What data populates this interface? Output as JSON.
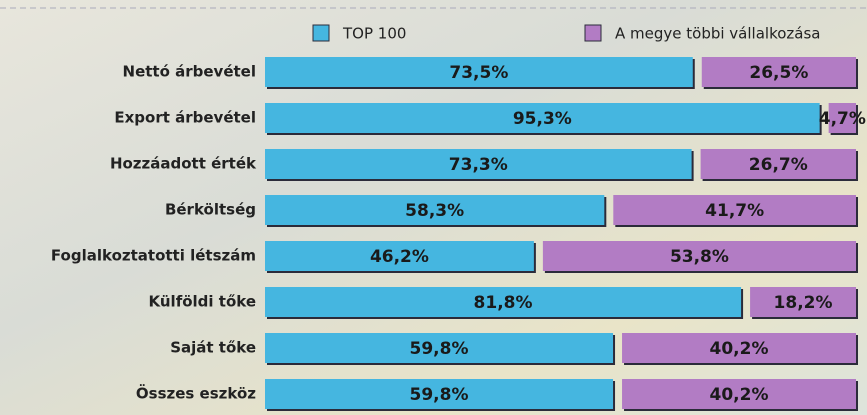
{
  "chart_data": {
    "type": "bar",
    "stacked": true,
    "categories": [
      "Nettó árbevétel",
      "Export árbevétel",
      "Hozzáadott érték",
      "Bérköltség",
      "Foglalkoztatotti létszám",
      "Külföldi tőke",
      "Saját tőke",
      "Összes eszköz"
    ],
    "series": [
      {
        "name": "TOP 100",
        "color": "#45b6e0",
        "values": [
          73.5,
          95.3,
          73.3,
          58.3,
          46.2,
          81.8,
          59.8,
          59.8
        ],
        "value_labels": [
          "73,5%",
          "95,3%",
          "73,3%",
          "58,3%",
          "46,2%",
          "81,8%",
          "59,8%",
          "59,8%"
        ]
      },
      {
        "name": "A megye többi vállalkozása",
        "color": "#b27cc4",
        "values": [
          26.5,
          4.7,
          26.7,
          41.7,
          53.8,
          18.2,
          40.2,
          40.2
        ],
        "value_labels": [
          "26,5%",
          "4,7%",
          "26,7%",
          "41,7%",
          "53,8%",
          "18,2%",
          "40,2%",
          "40,2%"
        ]
      }
    ]
  }
}
